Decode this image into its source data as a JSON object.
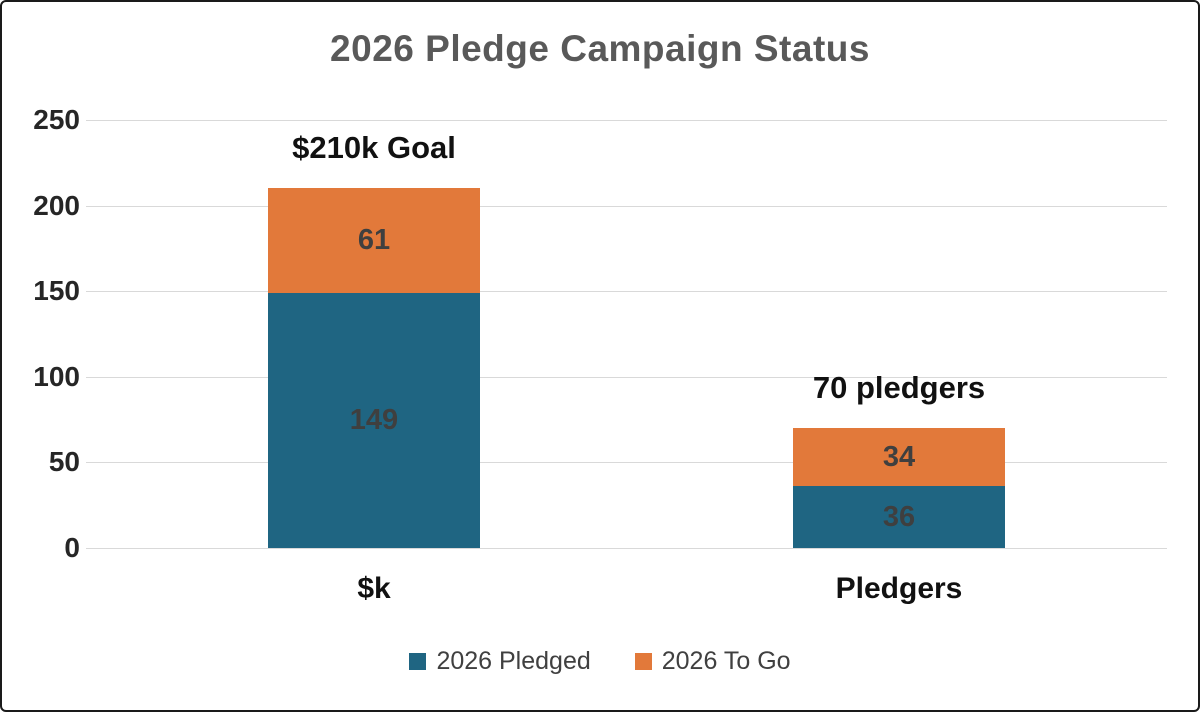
{
  "chart_data": {
    "type": "bar",
    "stacked": true,
    "title": "2026 Pledge Campaign Status",
    "categories": [
      "$k",
      "Pledgers"
    ],
    "series": [
      {
        "name": "2026 Pledged",
        "color": "#1f6582",
        "values": [
          149,
          36
        ]
      },
      {
        "name": "2026 To Go",
        "color": "#e2793a",
        "values": [
          61,
          34
        ]
      }
    ],
    "totals": [
      210,
      70
    ],
    "annotations": [
      "$210k Goal",
      "70 pledgers"
    ],
    "ylim": [
      0,
      250
    ],
    "yticks": [
      0,
      50,
      100,
      150,
      200,
      250
    ],
    "grid": true,
    "legend_position": "bottom",
    "gridline_color": "#d9d9d9"
  }
}
